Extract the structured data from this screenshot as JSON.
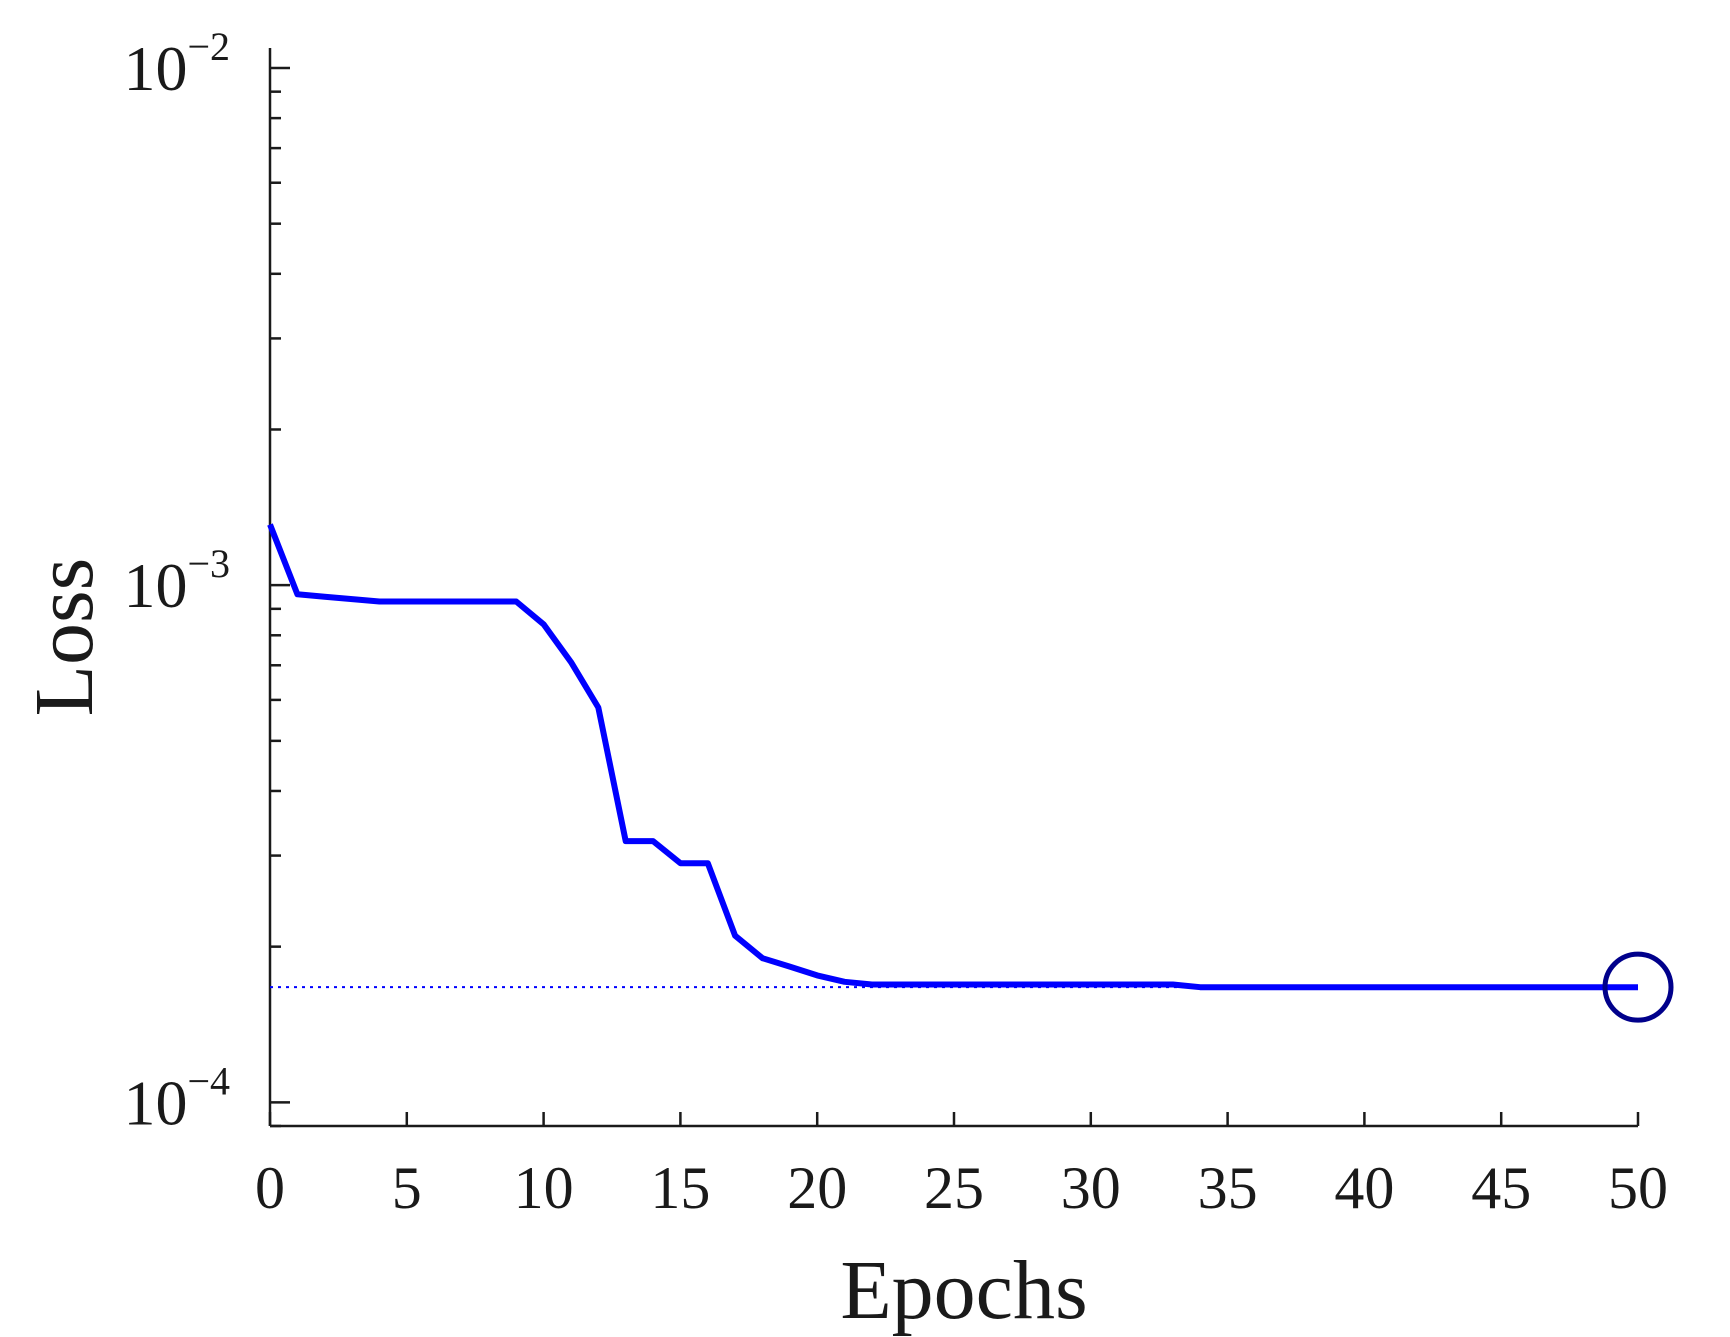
{
  "chart_data": {
    "type": "line",
    "title": "",
    "xlabel": "Epochs",
    "ylabel": "Loss",
    "xlim": [
      0,
      50
    ],
    "ylim": [
      9e-05,
      0.01
    ],
    "yscale": "log",
    "grid": false,
    "legend": "none",
    "x_ticks": [
      0,
      5,
      10,
      15,
      20,
      25,
      30,
      35,
      40,
      45,
      50
    ],
    "x_tick_labels": [
      "0",
      "5",
      "10",
      "15",
      "20",
      "25",
      "30",
      "35",
      "40",
      "45",
      "50"
    ],
    "y_ticks": [
      {
        "value": 0.01,
        "base": "10",
        "exponent": "−2"
      },
      {
        "value": 0.001,
        "base": "10",
        "exponent": "−3"
      },
      {
        "value": 0.0001,
        "base": "10",
        "exponent": "−4"
      }
    ],
    "series": [
      {
        "color": "#0000ff",
        "x": [
          0,
          1,
          2,
          3,
          4,
          5,
          6,
          7,
          8,
          9,
          10,
          11,
          12,
          13,
          14,
          15,
          16,
          17,
          18,
          19,
          20,
          21,
          22,
          23,
          24,
          25,
          26,
          27,
          28,
          29,
          30,
          31,
          32,
          33,
          34,
          35,
          36,
          37,
          38,
          39,
          40,
          41,
          42,
          43,
          44,
          45,
          46,
          47,
          48,
          49,
          50
        ],
        "y": [
          0.00131,
          0.00096,
          0.00095,
          0.00094,
          0.00093,
          0.00093,
          0.00093,
          0.00093,
          0.00093,
          0.00093,
          0.00084,
          0.00071,
          0.00058,
          0.00032,
          0.00032,
          0.00029,
          0.00029,
          0.00021,
          0.00019,
          0.000183,
          0.000176,
          0.000171,
          0.000169,
          0.000169,
          0.000169,
          0.000169,
          0.000169,
          0.000169,
          0.000169,
          0.000169,
          0.000169,
          0.000169,
          0.000169,
          0.000169,
          0.000167,
          0.000167,
          0.000167,
          0.000167,
          0.000167,
          0.000167,
          0.000167,
          0.000167,
          0.000167,
          0.000167,
          0.000167,
          0.000167,
          0.000167,
          0.000167,
          0.000167,
          0.000167,
          0.000167
        ]
      }
    ],
    "best": {
      "x": 50,
      "y": 0.000167,
      "marker": "circle",
      "color": "#00008b",
      "reference_line": "dotted",
      "reference_color": "#0000ff"
    }
  }
}
